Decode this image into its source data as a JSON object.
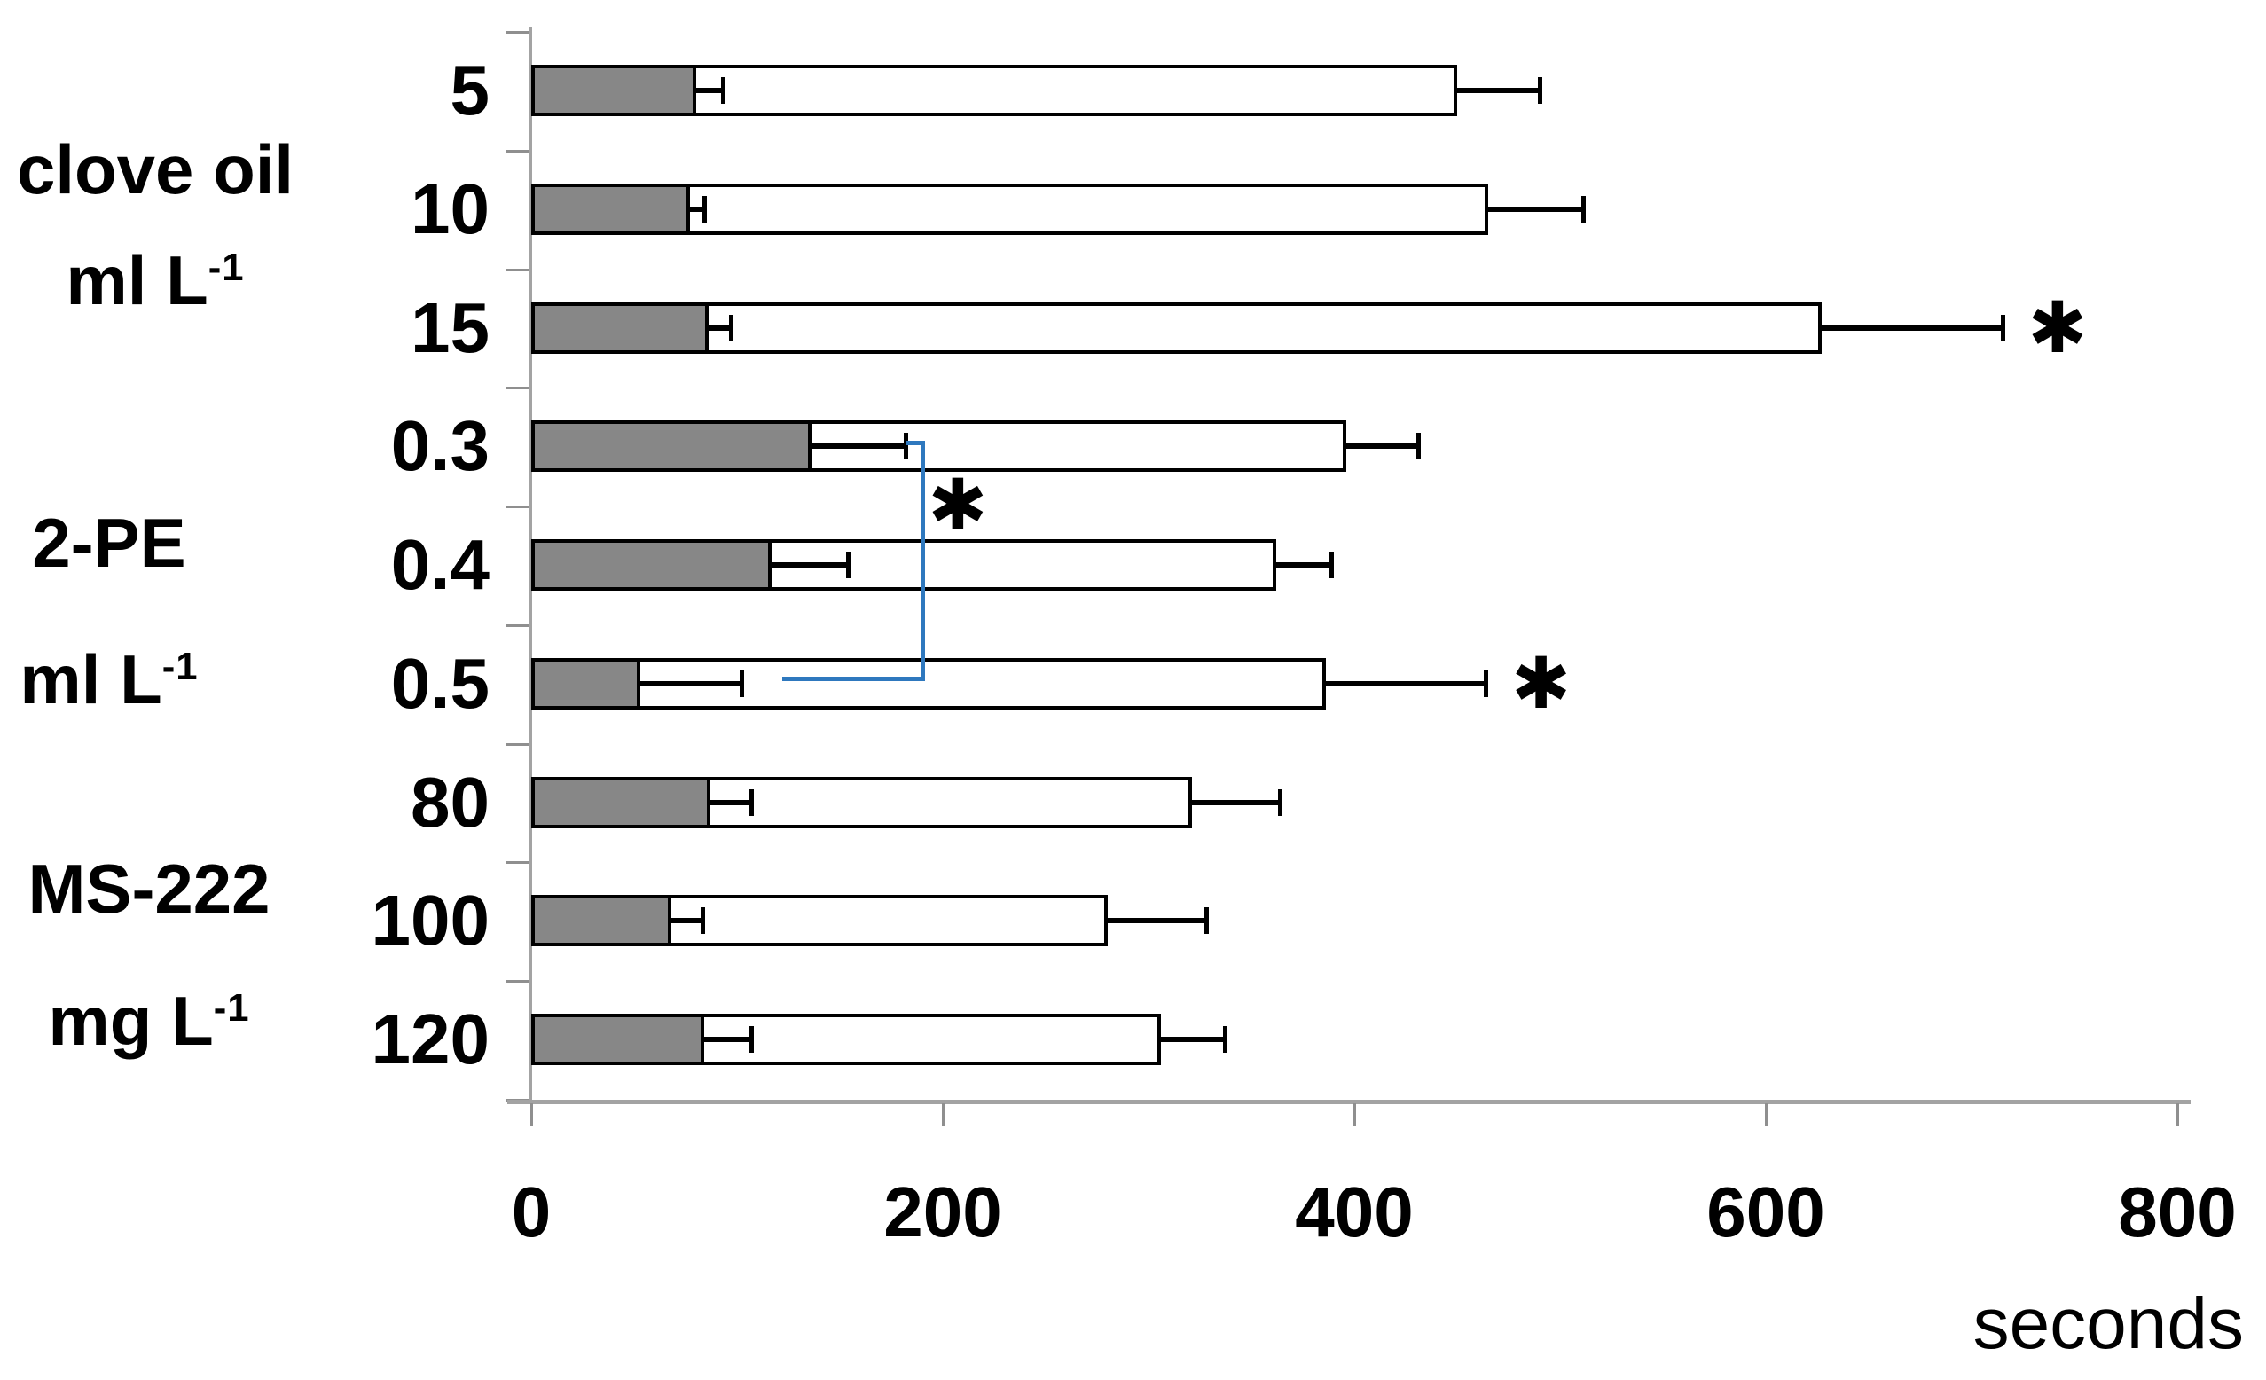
{
  "chart_data": {
    "type": "bar",
    "orientation": "horizontal",
    "stacked": true,
    "title": "",
    "xlabel": "seconds",
    "ylabel": "",
    "xlim": [
      0,
      800
    ],
    "grid": false,
    "legend": "none",
    "x_ticks": [
      {
        "v": 0,
        "label": "0"
      },
      {
        "v": 200,
        "label": "200"
      },
      {
        "v": 400,
        "label": "400"
      },
      {
        "v": 600,
        "label": "600"
      },
      {
        "v": 800,
        "label": "800"
      }
    ],
    "significance_symbol": "✱",
    "colors": {
      "gray_fill": "#878787",
      "white_fill": "#ffffff",
      "bar_border": "#000000",
      "axis_line": "#a3a3a3",
      "axis_tick": "#8f8f8f",
      "bracket_blue": "#2E78BE",
      "text": "#000000"
    },
    "groups": [
      {
        "name": "clove oil",
        "unit": "ml L",
        "exponent": "-1"
      },
      {
        "name": "2-PE",
        "unit": "ml L",
        "exponent": "-1"
      },
      {
        "name": "MS-222",
        "unit": "mg L",
        "exponent": "-1"
      }
    ],
    "rows": [
      {
        "group": 0,
        "label": "5",
        "gray_value": 80,
        "gray_error": 13,
        "end_value": 450,
        "end_error": 40,
        "significant": false
      },
      {
        "group": 0,
        "label": "10",
        "gray_value": 77,
        "gray_error": 7,
        "end_value": 465,
        "end_error": 46,
        "significant": false
      },
      {
        "group": 0,
        "label": "15",
        "gray_value": 86,
        "gray_error": 11,
        "end_value": 627,
        "end_error": 88,
        "significant": true
      },
      {
        "group": 1,
        "label": "0.3",
        "gray_value": 136,
        "gray_error": 46,
        "end_value": 396,
        "end_error": 35,
        "significant": false
      },
      {
        "group": 1,
        "label": "0.4",
        "gray_value": 117,
        "gray_error": 37,
        "end_value": 362,
        "end_error": 27,
        "significant": false
      },
      {
        "group": 1,
        "label": "0.5",
        "gray_value": 53,
        "gray_error": 49,
        "end_value": 386,
        "end_error": 78,
        "significant": true
      },
      {
        "group": 2,
        "label": "80",
        "gray_value": 87,
        "gray_error": 20,
        "end_value": 321,
        "end_error": 43,
        "significant": false
      },
      {
        "group": 2,
        "label": "100",
        "gray_value": 68,
        "gray_error": 15,
        "end_value": 280,
        "end_error": 48,
        "significant": false
      },
      {
        "group": 2,
        "label": "120",
        "gray_value": 84,
        "gray_error": 23,
        "end_value": 306,
        "end_error": 31,
        "significant": false
      }
    ],
    "comparison_bracket": {
      "between_rows": [
        "0.3",
        "0.5"
      ],
      "symbol": "✱",
      "x_value": 190,
      "bottom_start_value": 122,
      "color": "#2E78BE"
    }
  }
}
